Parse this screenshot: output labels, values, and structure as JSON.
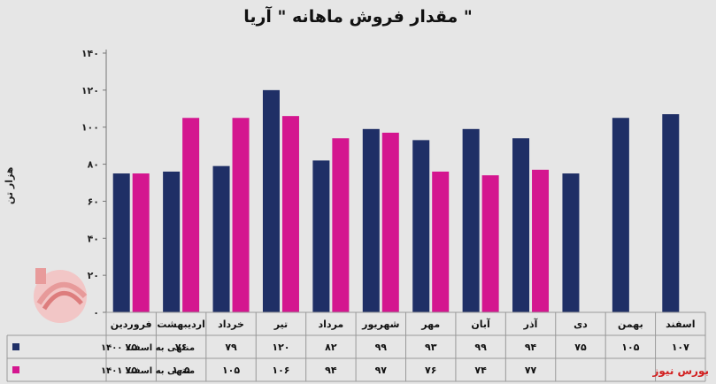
{
  "chart_data": {
    "type": "bar",
    "title": "\" مقدار فروش ماهانه \" آریا",
    "ylabel": "هزار تن",
    "ylim": [
      0,
      140
    ],
    "yticks": [
      "۰",
      "۲۰",
      "۴۰",
      "۶۰",
      "۸۰",
      "۱۰۰",
      "۱۲۰",
      "۱۴۰"
    ],
    "categories": [
      "فروردین",
      "اردیبهشت",
      "خرداد",
      "تیر",
      "مرداد",
      "شهریور",
      "مهر",
      "آبان",
      "آذر",
      "دی",
      "بهمن",
      "اسفند"
    ],
    "series": [
      {
        "name": "منتهی به اسفند ۱۴۰۰",
        "color": "#1f2f66",
        "values": [
          75,
          76,
          79,
          120,
          82,
          99,
          93,
          99,
          94,
          75,
          105,
          107
        ],
        "labels": [
          "۷۵",
          "۷۶",
          "۷۹",
          "۱۲۰",
          "۸۲",
          "۹۹",
          "۹۳",
          "۹۹",
          "۹۴",
          "۷۵",
          "۱۰۵",
          "۱۰۷"
        ]
      },
      {
        "name": "منتهی به اسفند ۱۴۰۱",
        "color": "#d4168f",
        "values": [
          75,
          105,
          105,
          106,
          94,
          97,
          76,
          74,
          77,
          null,
          null,
          null
        ],
        "labels": [
          "۷۵",
          "۱۰۵",
          "۱۰۵",
          "۱۰۶",
          "۹۴",
          "۹۷",
          "۷۶",
          "۷۴",
          "۷۷",
          "",
          "",
          ""
        ]
      }
    ],
    "grid": false,
    "legend": "table-left"
  },
  "brand": "بورس نیوز",
  "watermark_text": "بورس نیوز"
}
